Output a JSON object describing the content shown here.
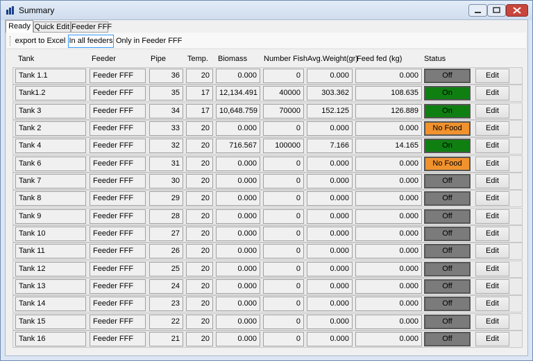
{
  "window": {
    "title": "Summary"
  },
  "tabs": [
    "Ready",
    "Quick Edit",
    "Feeder FFF"
  ],
  "toolbar": [
    "export to Excel",
    "In all feeders",
    "Only in Feeder FFF"
  ],
  "table": {
    "columns": [
      "Tank",
      "Feeder",
      "Pipe",
      "Temp.",
      "Biomass",
      "Number Fish",
      "Avg.Weight(gr)",
      "Feed fed (kg)",
      "Status"
    ],
    "rows": [
      {
        "cells": [
          "Tank 1.1",
          "Feeder FFF",
          "36",
          "20",
          "0.000",
          "0",
          "0.000",
          "0.000"
        ],
        "status": "Off",
        "status_color": "#7b7b7b",
        "action": "Edit"
      },
      {
        "cells": [
          "Tank1.2",
          "Feeder FFF",
          "35",
          "17",
          "12,134.491",
          "40000",
          "303.362",
          "108.635"
        ],
        "status": "On",
        "status_color": "#0f7f12",
        "action": "Edit"
      },
      {
        "cells": [
          "Tank 3",
          "Feeder FFF",
          "34",
          "17",
          "10,648.759",
          "70000",
          "152.125",
          "126.889"
        ],
        "status": "On",
        "status_color": "#0f7f12",
        "action": "Edit"
      },
      {
        "cells": [
          "Tank 2",
          "Feeder FFF",
          "33",
          "20",
          "0.000",
          "0",
          "0.000",
          "0.000"
        ],
        "status": "No Food",
        "status_color": "#f0922e",
        "action": "Edit"
      },
      {
        "cells": [
          "Tank 4",
          "Feeder FFF",
          "32",
          "20",
          "716.567",
          "100000",
          "7.166",
          "14.165"
        ],
        "status": "On",
        "status_color": "#0f7f12",
        "action": "Edit"
      },
      {
        "cells": [
          "Tank 6",
          "Feeder FFF",
          "31",
          "20",
          "0.000",
          "0",
          "0.000",
          "0.000"
        ],
        "status": "No Food",
        "status_color": "#f0922e",
        "action": "Edit"
      },
      {
        "cells": [
          "Tank 7",
          "Feeder FFF",
          "30",
          "20",
          "0.000",
          "0",
          "0.000",
          "0.000"
        ],
        "status": "Off",
        "status_color": "#7b7b7b",
        "action": "Edit"
      },
      {
        "cells": [
          "Tank 8",
          "Feeder FFF",
          "29",
          "20",
          "0.000",
          "0",
          "0.000",
          "0.000"
        ],
        "status": "Off",
        "status_color": "#7b7b7b",
        "action": "Edit"
      },
      {
        "cells": [
          "Tank 9",
          "Feeder FFF",
          "28",
          "20",
          "0.000",
          "0",
          "0.000",
          "0.000"
        ],
        "status": "Off",
        "status_color": "#7b7b7b",
        "action": "Edit"
      },
      {
        "cells": [
          "Tank 10",
          "Feeder FFF",
          "27",
          "20",
          "0.000",
          "0",
          "0.000",
          "0.000"
        ],
        "status": "Off",
        "status_color": "#7b7b7b",
        "action": "Edit"
      },
      {
        "cells": [
          "Tank 11",
          "Feeder FFF",
          "26",
          "20",
          "0.000",
          "0",
          "0.000",
          "0.000"
        ],
        "status": "Off",
        "status_color": "#7b7b7b",
        "action": "Edit"
      },
      {
        "cells": [
          "Tank 12",
          "Feeder FFF",
          "25",
          "20",
          "0.000",
          "0",
          "0.000",
          "0.000"
        ],
        "status": "Off",
        "status_color": "#7b7b7b",
        "action": "Edit"
      },
      {
        "cells": [
          "Tank 13",
          "Feeder FFF",
          "24",
          "20",
          "0.000",
          "0",
          "0.000",
          "0.000"
        ],
        "status": "Off",
        "status_color": "#7b7b7b",
        "action": "Edit"
      },
      {
        "cells": [
          "Tank 14",
          "Feeder FFF",
          "23",
          "20",
          "0.000",
          "0",
          "0.000",
          "0.000"
        ],
        "status": "Off",
        "status_color": "#7b7b7b",
        "action": "Edit"
      },
      {
        "cells": [
          "Tank 15",
          "Feeder FFF",
          "22",
          "20",
          "0.000",
          "0",
          "0.000",
          "0.000"
        ],
        "status": "Off",
        "status_color": "#7b7b7b",
        "action": "Edit"
      },
      {
        "cells": [
          "Tank 16",
          "Feeder FFF",
          "21",
          "20",
          "0.000",
          "0",
          "0.000",
          "0.000"
        ],
        "status": "Off",
        "status_color": "#7b7b7b",
        "action": "Edit"
      }
    ]
  }
}
